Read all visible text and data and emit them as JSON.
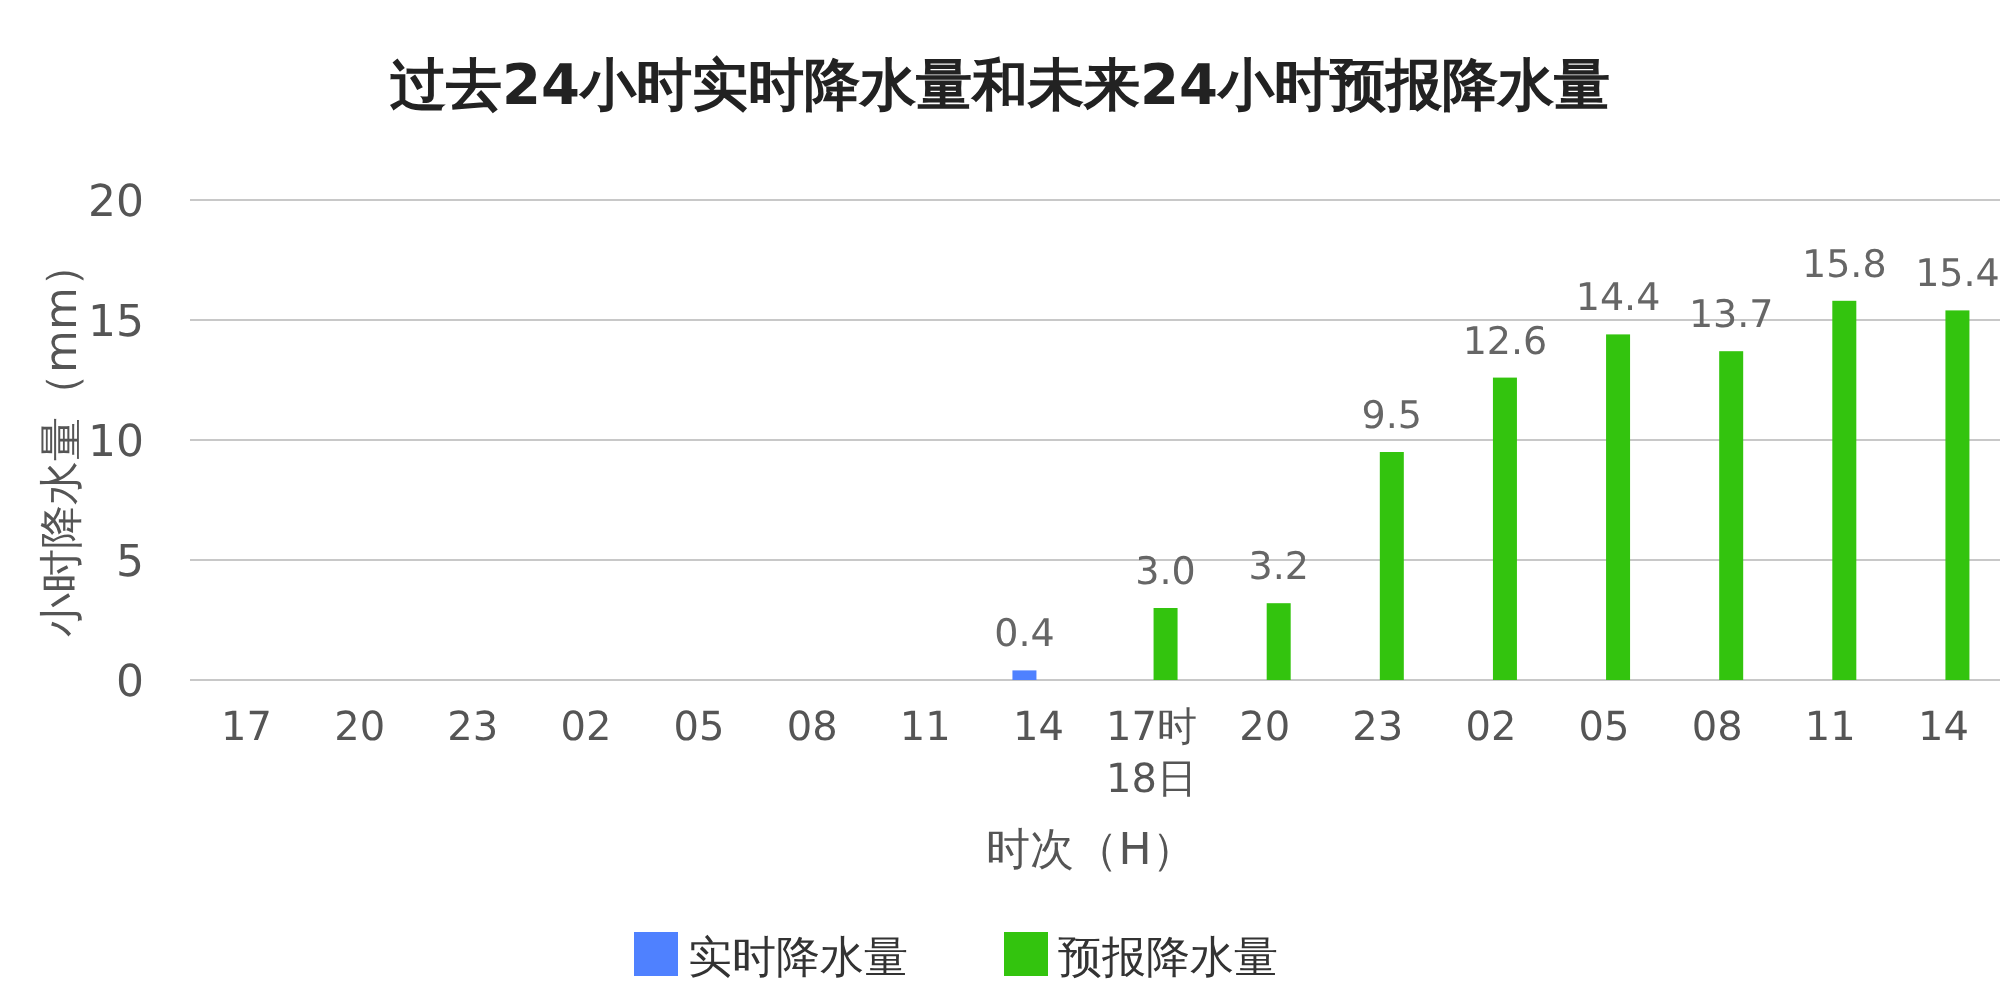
{
  "chart_data": {
    "type": "bar",
    "title": "过去24小时实时降水量和未来24小时预报降水量",
    "xlabel": "时次（H）",
    "ylabel": "小时降水量（mm）",
    "categories": [
      "17",
      "20",
      "23",
      "02",
      "05",
      "08",
      "11",
      "14",
      "17时\n18日",
      "20",
      "23",
      "02",
      "05",
      "08",
      "11",
      "14"
    ],
    "series": [
      {
        "name": "实时降水量",
        "color": "#4f81ff",
        "values": [
          0,
          0,
          0,
          0,
          0,
          0,
          0,
          0.4,
          null,
          null,
          null,
          null,
          null,
          null,
          null,
          null
        ],
        "value_labels": [
          null,
          null,
          null,
          null,
          null,
          null,
          null,
          "0.4",
          null,
          null,
          null,
          null,
          null,
          null,
          null,
          null
        ]
      },
      {
        "name": "预报降水量",
        "color": "#33c40e",
        "values": [
          null,
          null,
          null,
          null,
          null,
          null,
          null,
          null,
          3.0,
          3.2,
          9.5,
          12.6,
          14.4,
          13.7,
          15.8,
          15.4
        ],
        "value_labels": [
          null,
          null,
          null,
          null,
          null,
          null,
          null,
          null,
          "3.0",
          "3.2",
          "9.5",
          "12.6",
          "14.4",
          "13.7",
          "15.8",
          "15.4"
        ]
      }
    ],
    "ylim": [
      0,
      20
    ],
    "yticks": [
      0,
      5,
      10,
      15,
      20
    ],
    "grid": "y",
    "legend": "bottom"
  }
}
